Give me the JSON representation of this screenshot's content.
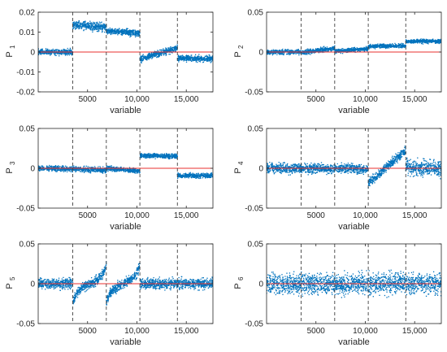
{
  "chart_data": [
    {
      "type": "scatter",
      "ylabel_main": "P",
      "ylabel_sub": "1",
      "xlabel": "variable",
      "ylim": [
        -0.02,
        0.02
      ],
      "xlim": [
        0,
        17700
      ],
      "yticks": [
        -0.02,
        -0.01,
        0,
        0.01,
        0.02
      ],
      "ytick_labels": [
        "-0.02",
        "-0.01",
        "0",
        "0.01",
        "0.02"
      ],
      "xticks": [
        5000,
        10000,
        15000
      ],
      "xtick_labels": [
        "5000",
        "10,000",
        "15,000"
      ],
      "boundaries": [
        3500,
        6900,
        10300,
        14100
      ],
      "reference_line": 0,
      "segments": [
        {
          "x_start": 0,
          "x_end": 3500,
          "y_start": 0.0,
          "y_end": 0.0,
          "spread": 0.0012
        },
        {
          "x_start": 3500,
          "x_end": 6900,
          "y_start": 0.0135,
          "y_end": 0.0125,
          "spread": 0.0018
        },
        {
          "x_start": 6900,
          "x_end": 10300,
          "y_start": 0.0105,
          "y_end": 0.0095,
          "spread": 0.0014
        },
        {
          "x_start": 10300,
          "x_end": 14100,
          "y_start": -0.0035,
          "y_end": 0.002,
          "spread": 0.0014
        },
        {
          "x_start": 14100,
          "x_end": 17700,
          "y_start": -0.003,
          "y_end": -0.0035,
          "spread": 0.0014
        }
      ]
    },
    {
      "type": "scatter",
      "ylabel_main": "P",
      "ylabel_sub": "2",
      "xlabel": "variable",
      "ylim": [
        -0.05,
        0.05
      ],
      "xlim": [
        0,
        17700
      ],
      "yticks": [
        -0.05,
        0,
        0.05
      ],
      "ytick_labels": [
        "-0.05",
        "0",
        "0.05"
      ],
      "xticks": [
        5000,
        10000,
        15000
      ],
      "xtick_labels": [
        "5000",
        "10,000",
        "15,000"
      ],
      "boundaries": [
        3500,
        6900,
        10300,
        14100
      ],
      "reference_line": 0,
      "segments": [
        {
          "x_start": 0,
          "x_end": 3500,
          "y_start": 0.0,
          "y_end": 0.0,
          "spread": 0.0025
        },
        {
          "x_start": 3500,
          "x_end": 6900,
          "y_start": -0.001,
          "y_end": 0.005,
          "spread": 0.0025
        },
        {
          "x_start": 6900,
          "x_end": 10300,
          "y_start": 0.001,
          "y_end": 0.004,
          "spread": 0.0022
        },
        {
          "x_start": 10300,
          "x_end": 14100,
          "y_start": 0.007,
          "y_end": 0.008,
          "spread": 0.0022
        },
        {
          "x_start": 14100,
          "x_end": 17700,
          "y_start": 0.0135,
          "y_end": 0.0135,
          "spread": 0.0022
        }
      ]
    },
    {
      "type": "scatter",
      "ylabel_main": "P",
      "ylabel_sub": "3",
      "xlabel": "variable",
      "ylim": [
        -0.05,
        0.05
      ],
      "xlim": [
        0,
        17700
      ],
      "yticks": [
        -0.05,
        0,
        0.05
      ],
      "ytick_labels": [
        "-0.05",
        "0",
        "0.05"
      ],
      "xticks": [
        5000,
        10000,
        15000
      ],
      "xtick_labels": [
        "5000",
        "10,000",
        "15,000"
      ],
      "boundaries": [
        3500,
        6900,
        10300,
        14100
      ],
      "reference_line": 0,
      "segments": [
        {
          "x_start": 0,
          "x_end": 3500,
          "y_start": 0.0,
          "y_end": -0.001,
          "spread": 0.0028
        },
        {
          "x_start": 3500,
          "x_end": 6900,
          "y_start": -0.0005,
          "y_end": -0.0025,
          "spread": 0.0028
        },
        {
          "x_start": 6900,
          "x_end": 10300,
          "y_start": 0.0,
          "y_end": -0.0035,
          "spread": 0.0025
        },
        {
          "x_start": 10300,
          "x_end": 14100,
          "y_start": 0.016,
          "y_end": 0.015,
          "spread": 0.0025
        },
        {
          "x_start": 14100,
          "x_end": 17700,
          "y_start": -0.009,
          "y_end": -0.0095,
          "spread": 0.0025
        }
      ]
    },
    {
      "type": "scatter",
      "ylabel_main": "P",
      "ylabel_sub": "4",
      "xlabel": "variable",
      "ylim": [
        -0.05,
        0.05
      ],
      "xlim": [
        0,
        17700
      ],
      "yticks": [
        -0.05,
        0,
        0.05
      ],
      "ytick_labels": [
        "-0.05",
        "0",
        "0.05"
      ],
      "xticks": [
        5000,
        10000,
        15000
      ],
      "xtick_labels": [
        "5000",
        "10,000",
        "15,000"
      ],
      "boundaries": [
        3500,
        6900,
        10300,
        14100
      ],
      "reference_line": 0,
      "segments": [
        {
          "x_start": 0,
          "x_end": 3500,
          "y_start": 0.0,
          "y_end": 0.0,
          "spread": 0.0055
        },
        {
          "x_start": 3500,
          "x_end": 6900,
          "y_start": 0.0,
          "y_end": -0.001,
          "spread": 0.005
        },
        {
          "x_start": 6900,
          "x_end": 10300,
          "y_start": 0.0,
          "y_end": -0.001,
          "spread": 0.005
        },
        {
          "x_start": 10300,
          "x_end": 14100,
          "y_start": -0.019,
          "y_end": 0.023,
          "spread": 0.0045
        },
        {
          "x_start": 14100,
          "x_end": 17700,
          "y_start": 0.0,
          "y_end": 0.0,
          "spread": 0.0085
        }
      ]
    },
    {
      "type": "scatter",
      "ylabel_main": "P",
      "ylabel_sub": "5",
      "xlabel": "variable",
      "ylim": [
        -0.05,
        0.05
      ],
      "xlim": [
        0,
        17700
      ],
      "yticks": [
        -0.05,
        0,
        0.05
      ],
      "ytick_labels": [
        "-0.05",
        "0",
        "0.05"
      ],
      "xticks": [
        5000,
        10000,
        15000
      ],
      "xtick_labels": [
        "5000",
        "10,000",
        "15,000"
      ],
      "boundaries": [
        3500,
        6900,
        10300,
        14100
      ],
      "reference_line": 0,
      "segments": [
        {
          "x_start": 0,
          "x_end": 3500,
          "y_start": 0.0,
          "y_end": 0.0,
          "spread": 0.0055
        },
        {
          "x_start": 3500,
          "x_end": 6900,
          "y_start": -0.025,
          "y_end": 0.025,
          "spread": 0.005,
          "shape": "tan"
        },
        {
          "x_start": 6900,
          "x_end": 10300,
          "y_start": -0.025,
          "y_end": 0.025,
          "spread": 0.005,
          "shape": "tan"
        },
        {
          "x_start": 10300,
          "x_end": 14100,
          "y_start": 0.0,
          "y_end": 0.0,
          "spread": 0.0055
        },
        {
          "x_start": 14100,
          "x_end": 17700,
          "y_start": 0.0,
          "y_end": 0.0,
          "spread": 0.0055
        }
      ]
    },
    {
      "type": "scatter",
      "ylabel_main": "P",
      "ylabel_sub": "6",
      "xlabel": "variable",
      "ylim": [
        -0.05,
        0.05
      ],
      "xlim": [
        0,
        17700
      ],
      "yticks": [
        -0.05,
        0,
        0.05
      ],
      "ytick_labels": [
        "-0.05",
        "0",
        "0.05"
      ],
      "xticks": [
        5000,
        10000,
        15000
      ],
      "xtick_labels": [
        "5000",
        "10,000",
        "15,000"
      ],
      "boundaries": [
        3500,
        6900,
        10300,
        14100
      ],
      "reference_line": 0,
      "segments": [
        {
          "x_start": 0,
          "x_end": 3500,
          "y_start": 0.0,
          "y_end": 0.0,
          "spread": 0.011
        },
        {
          "x_start": 3500,
          "x_end": 6900,
          "y_start": 0.0,
          "y_end": 0.0,
          "spread": 0.011
        },
        {
          "x_start": 6900,
          "x_end": 10300,
          "y_start": 0.0,
          "y_end": 0.0,
          "spread": 0.011
        },
        {
          "x_start": 10300,
          "x_end": 14100,
          "y_start": 0.0,
          "y_end": 0.0,
          "spread": 0.011
        },
        {
          "x_start": 14100,
          "x_end": 17700,
          "y_start": 0.0,
          "y_end": 0.0,
          "spread": 0.011
        }
      ]
    }
  ],
  "colors": {
    "points": "#0072bd",
    "reference_line": "#e8312f",
    "boundary_line": "#404040",
    "axis": "#262626"
  }
}
